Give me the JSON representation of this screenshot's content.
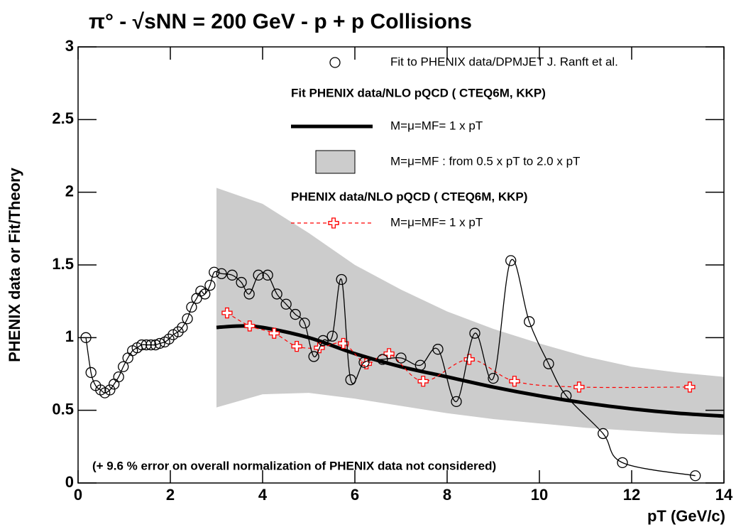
{
  "chart_data": {
    "type": "line",
    "title": "π° - √sNN = 200 GeV - p + p Collisions",
    "x_label": "pT (GeV/c)",
    "y_label": "PHENIX data or Fit/Theory",
    "annotation": "(+ 9.6  % error on overall normalization of PHENIX data not considered)",
    "legend_headers": [
      "Fit PHENIX data/NLO pQCD ( CTEQ6M, KKP)",
      "PHENIX data/NLO pQCD ( CTEQ6M, KKP)"
    ],
    "xlim": [
      0,
      14
    ],
    "xticks": [
      0,
      2,
      4,
      6,
      8,
      10,
      12,
      14
    ],
    "ylim": [
      0,
      3
    ],
    "yticks": [
      0,
      0.5,
      1,
      1.5,
      2,
      2.5,
      3
    ],
    "series": [
      {
        "name": "M=μ=MF : from  0.5  x pT to 2.0 x pT",
        "kind": "band",
        "color": "#cccccc",
        "x": [
          3,
          4,
          5,
          6,
          7,
          8,
          9,
          10,
          11,
          12,
          13,
          14
        ],
        "upper": [
          2.03,
          1.92,
          1.72,
          1.5,
          1.33,
          1.18,
          1.06,
          0.96,
          0.87,
          0.8,
          0.76,
          0.73
        ],
        "lower": [
          0.52,
          0.61,
          0.62,
          0.58,
          0.53,
          0.48,
          0.44,
          0.41,
          0.38,
          0.36,
          0.34,
          0.33
        ]
      },
      {
        "name": "M=μ=MF= 1 x pT",
        "kind": "curve",
        "color": "#000000",
        "x": [
          3,
          3.5,
          4,
          5,
          6,
          7,
          8,
          9,
          10,
          11,
          12,
          13,
          14
        ],
        "values": [
          1.07,
          1.08,
          1.07,
          1.0,
          0.89,
          0.8,
          0.73,
          0.66,
          0.6,
          0.55,
          0.51,
          0.48,
          0.46
        ]
      },
      {
        "name": "M=μ=MF= 1 x pT",
        "kind": "cross",
        "color": "#ff0000",
        "x": [
          3.23,
          3.72,
          4.25,
          4.74,
          5.23,
          5.75,
          6.25,
          6.74,
          7.48,
          8.48,
          9.46,
          10.86,
          13.26
        ],
        "values": [
          1.17,
          1.08,
          1.03,
          0.94,
          0.93,
          0.96,
          0.82,
          0.89,
          0.7,
          0.85,
          0.7,
          0.66,
          0.66
        ]
      },
      {
        "name": "Fit to PHENIX data/DPMJET J. Ranft et al.",
        "kind": "circle",
        "color": "#000000",
        "x": [
          0.17,
          0.28,
          0.38,
          0.49,
          0.58,
          0.69,
          0.78,
          0.88,
          0.98,
          1.08,
          1.18,
          1.28,
          1.38,
          1.48,
          1.58,
          1.68,
          1.77,
          1.88,
          1.97,
          2.06,
          2.17,
          2.26,
          2.37,
          2.46,
          2.57,
          2.66,
          2.75,
          2.86,
          2.95,
          3.11,
          3.34,
          3.54,
          3.71,
          3.91,
          4.11,
          4.31,
          4.51,
          4.71,
          4.91,
          5.11,
          5.31,
          5.51,
          5.71,
          5.91,
          6.2,
          6.6,
          7.0,
          7.42,
          7.8,
          8.2,
          8.6,
          9.0,
          9.38,
          9.78,
          10.2,
          10.58,
          11.38,
          11.8,
          13.38
        ],
        "values": [
          1.0,
          0.76,
          0.67,
          0.64,
          0.62,
          0.64,
          0.68,
          0.73,
          0.8,
          0.86,
          0.91,
          0.93,
          0.95,
          0.95,
          0.95,
          0.95,
          0.96,
          0.97,
          0.99,
          1.02,
          1.04,
          1.07,
          1.13,
          1.21,
          1.27,
          1.32,
          1.3,
          1.36,
          1.45,
          1.44,
          1.43,
          1.38,
          1.3,
          1.43,
          1.43,
          1.3,
          1.23,
          1.16,
          1.1,
          0.87,
          0.98,
          1.01,
          1.4,
          0.71,
          0.83,
          0.85,
          0.86,
          0.81,
          0.92,
          0.56,
          1.03,
          0.72,
          1.53,
          1.11,
          0.82,
          0.6,
          0.34,
          0.14,
          0.05
        ]
      }
    ]
  }
}
